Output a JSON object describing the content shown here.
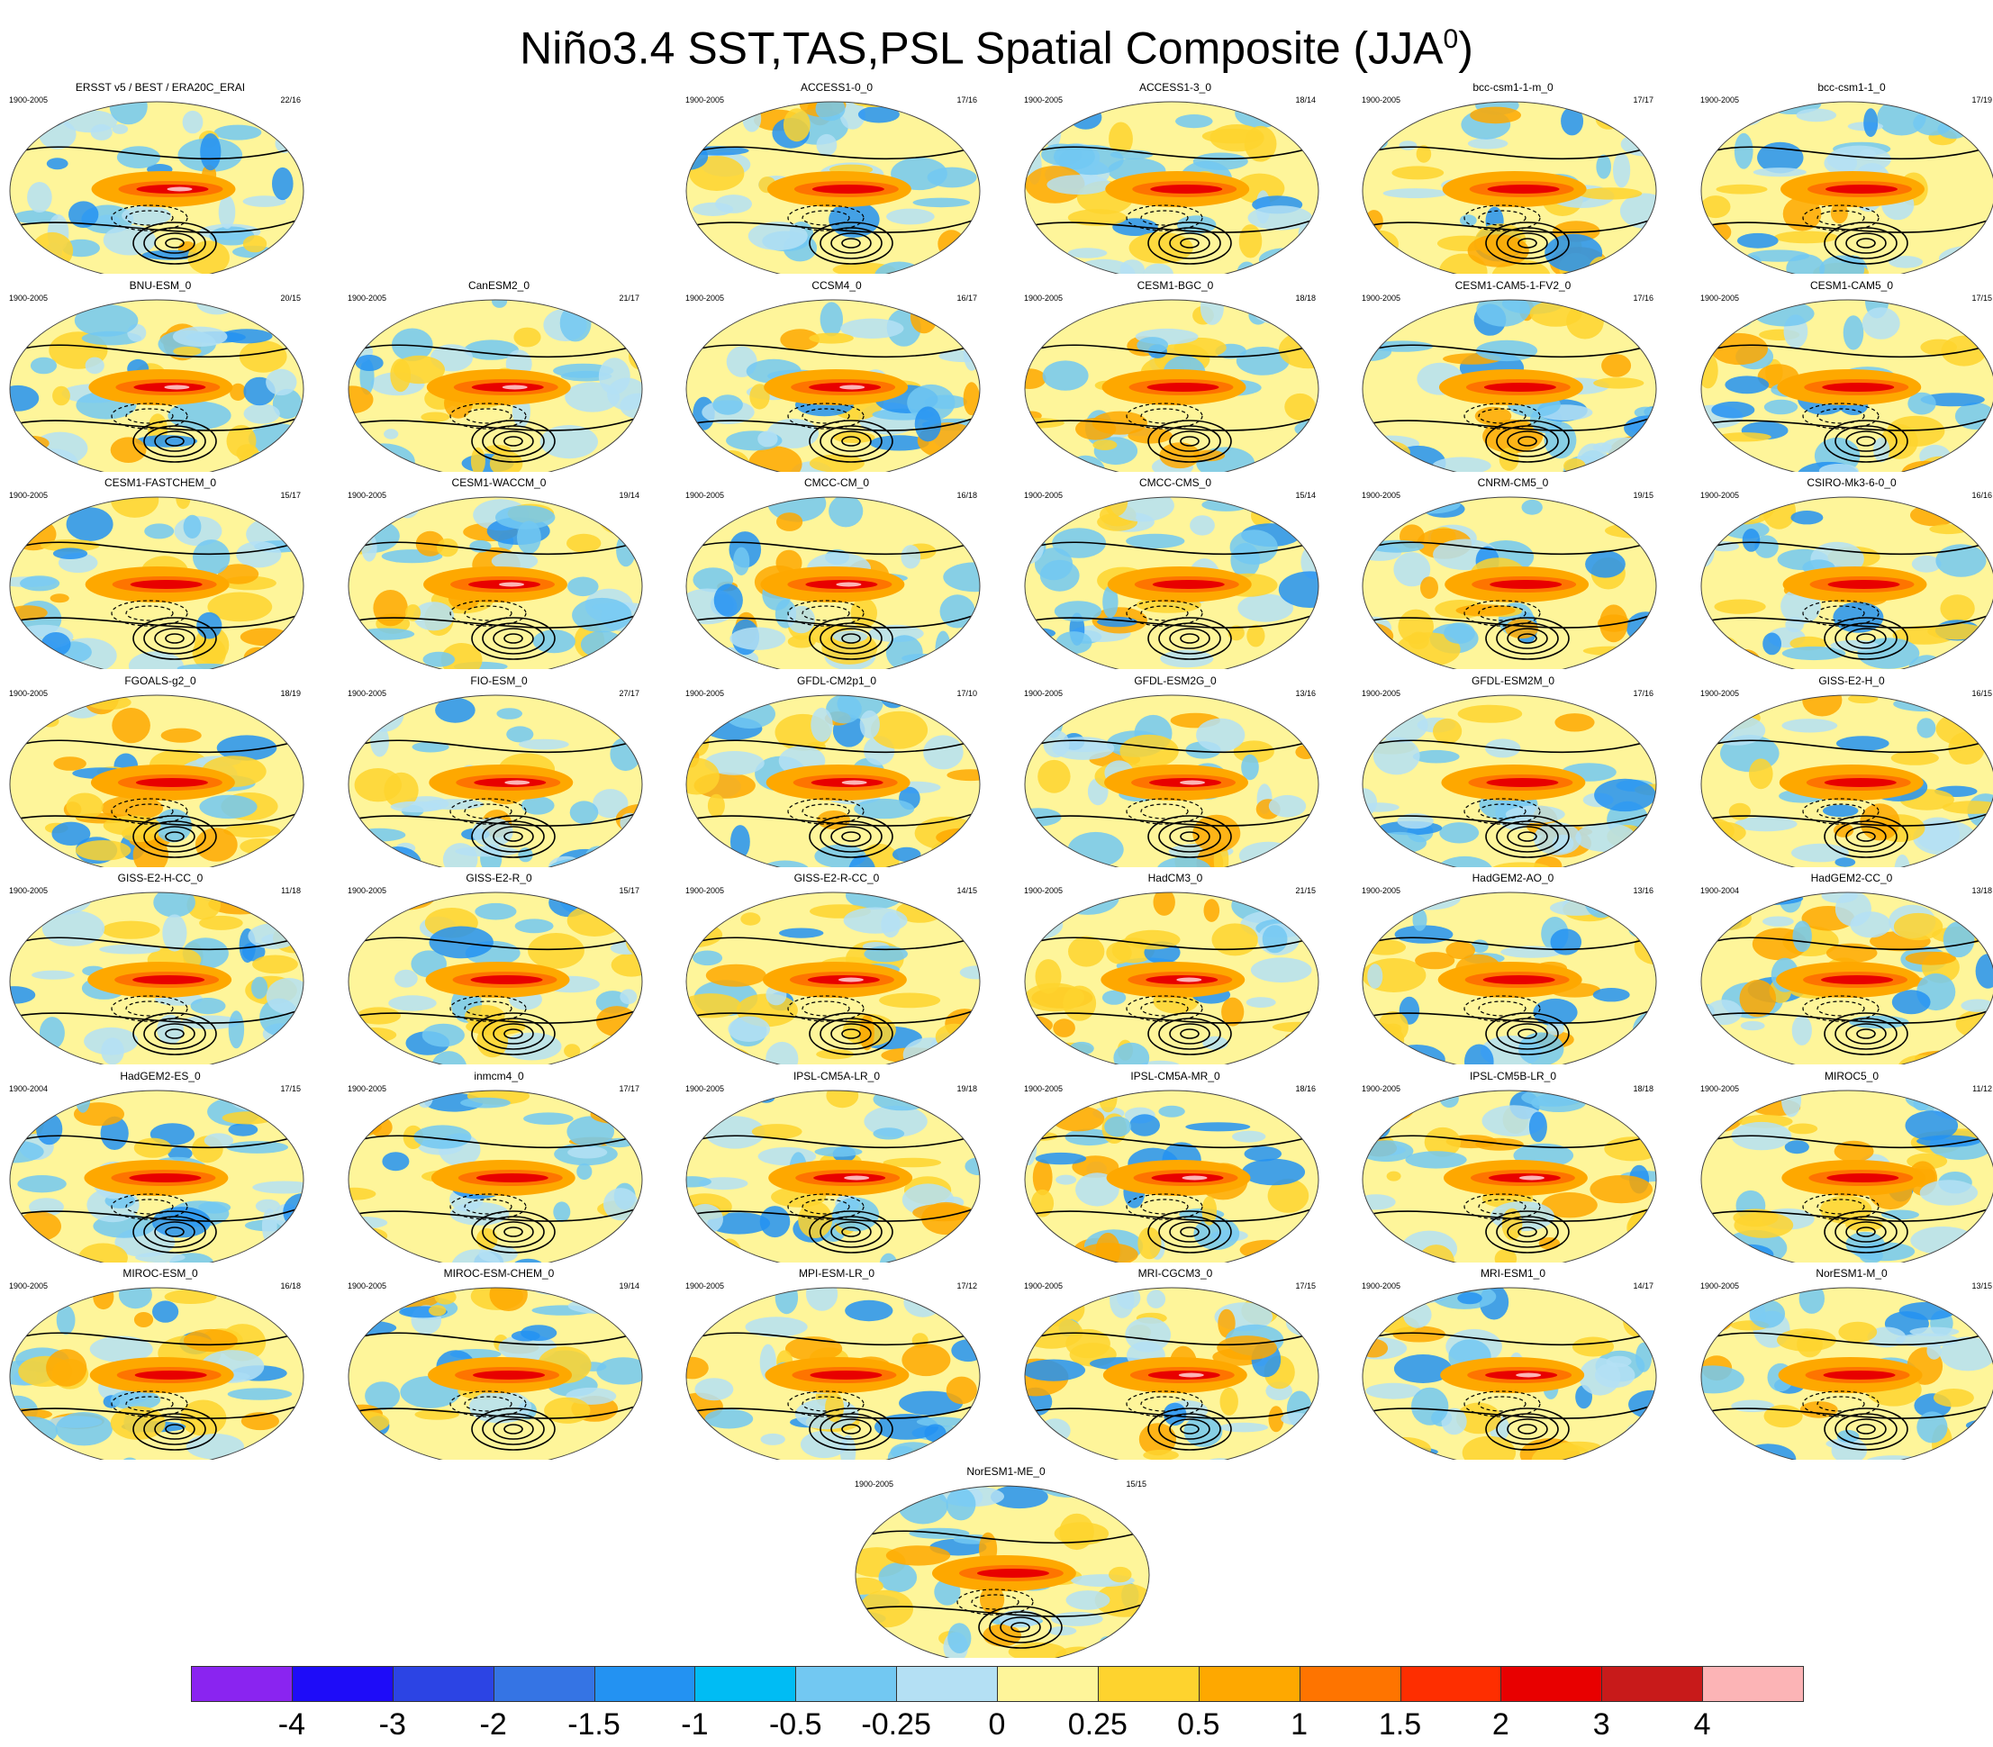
{
  "title_main": "Niño3.4 SST,TAS,PSL Spatial Composite (JJA",
  "title_sup": "0",
  "title_close": ")",
  "panels": [
    {
      "name": "ERSST v5 / BEST / ERA20C_ERAI",
      "years": "1900-2005",
      "count": "22/16",
      "row": 0,
      "col": 0
    },
    {
      "name": "ACCESS1-0_0",
      "years": "1900-2005",
      "count": "17/16",
      "row": 0,
      "col": 2
    },
    {
      "name": "ACCESS1-3_0",
      "years": "1900-2005",
      "count": "18/14",
      "row": 0,
      "col": 3
    },
    {
      "name": "bcc-csm1-1-m_0",
      "years": "1900-2005",
      "count": "17/17",
      "row": 0,
      "col": 4
    },
    {
      "name": "bcc-csm1-1_0",
      "years": "1900-2005",
      "count": "17/19",
      "row": 0,
      "col": 5
    },
    {
      "name": "BNU-ESM_0",
      "years": "1900-2005",
      "count": "20/15",
      "row": 1,
      "col": 0
    },
    {
      "name": "CanESM2_0",
      "years": "1900-2005",
      "count": "21/17",
      "row": 1,
      "col": 1
    },
    {
      "name": "CCSM4_0",
      "years": "1900-2005",
      "count": "16/17",
      "row": 1,
      "col": 2
    },
    {
      "name": "CESM1-BGC_0",
      "years": "1900-2005",
      "count": "18/18",
      "row": 1,
      "col": 3
    },
    {
      "name": "CESM1-CAM5-1-FV2_0",
      "years": "1900-2005",
      "count": "17/16",
      "row": 1,
      "col": 4
    },
    {
      "name": "CESM1-CAM5_0",
      "years": "1900-2005",
      "count": "17/15",
      "row": 1,
      "col": 5
    },
    {
      "name": "CESM1-FASTCHEM_0",
      "years": "1900-2005",
      "count": "15/17",
      "row": 2,
      "col": 0
    },
    {
      "name": "CESM1-WACCM_0",
      "years": "1900-2005",
      "count": "19/14",
      "row": 2,
      "col": 1
    },
    {
      "name": "CMCC-CM_0",
      "years": "1900-2005",
      "count": "16/18",
      "row": 2,
      "col": 2
    },
    {
      "name": "CMCC-CMS_0",
      "years": "1900-2005",
      "count": "15/14",
      "row": 2,
      "col": 3
    },
    {
      "name": "CNRM-CM5_0",
      "years": "1900-2005",
      "count": "19/15",
      "row": 2,
      "col": 4
    },
    {
      "name": "CSIRO-Mk3-6-0_0",
      "years": "1900-2005",
      "count": "16/16",
      "row": 2,
      "col": 5
    },
    {
      "name": "FGOALS-g2_0",
      "years": "1900-2005",
      "count": "18/19",
      "row": 3,
      "col": 0
    },
    {
      "name": "FIO-ESM_0",
      "years": "1900-2005",
      "count": "27/17",
      "row": 3,
      "col": 1
    },
    {
      "name": "GFDL-CM2p1_0",
      "years": "1900-2005",
      "count": "17/10",
      "row": 3,
      "col": 2
    },
    {
      "name": "GFDL-ESM2G_0",
      "years": "1900-2005",
      "count": "13/16",
      "row": 3,
      "col": 3
    },
    {
      "name": "GFDL-ESM2M_0",
      "years": "1900-2005",
      "count": "17/16",
      "row": 3,
      "col": 4
    },
    {
      "name": "GISS-E2-H_0",
      "years": "1900-2005",
      "count": "16/15",
      "row": 3,
      "col": 5
    },
    {
      "name": "GISS-E2-H-CC_0",
      "years": "1900-2005",
      "count": "11/18",
      "row": 4,
      "col": 0
    },
    {
      "name": "GISS-E2-R_0",
      "years": "1900-2005",
      "count": "15/17",
      "row": 4,
      "col": 1
    },
    {
      "name": "GISS-E2-R-CC_0",
      "years": "1900-2005",
      "count": "14/15",
      "row": 4,
      "col": 2
    },
    {
      "name": "HadCM3_0",
      "years": "1900-2005",
      "count": "21/15",
      "row": 4,
      "col": 3
    },
    {
      "name": "HadGEM2-AO_0",
      "years": "1900-2005",
      "count": "13/16",
      "row": 4,
      "col": 4
    },
    {
      "name": "HadGEM2-CC_0",
      "years": "1900-2004",
      "count": "13/18",
      "row": 4,
      "col": 5
    },
    {
      "name": "HadGEM2-ES_0",
      "years": "1900-2004",
      "count": "17/15",
      "row": 5,
      "col": 0
    },
    {
      "name": "inmcm4_0",
      "years": "1900-2005",
      "count": "17/17",
      "row": 5,
      "col": 1
    },
    {
      "name": "IPSL-CM5A-LR_0",
      "years": "1900-2005",
      "count": "19/18",
      "row": 5,
      "col": 2
    },
    {
      "name": "IPSL-CM5A-MR_0",
      "years": "1900-2005",
      "count": "18/16",
      "row": 5,
      "col": 3
    },
    {
      "name": "IPSL-CM5B-LR_0",
      "years": "1900-2005",
      "count": "18/18",
      "row": 5,
      "col": 4
    },
    {
      "name": "MIROC5_0",
      "years": "1900-2005",
      "count": "11/12",
      "row": 5,
      "col": 5
    },
    {
      "name": "MIROC-ESM_0",
      "years": "1900-2005",
      "count": "16/18",
      "row": 6,
      "col": 0
    },
    {
      "name": "MIROC-ESM-CHEM_0",
      "years": "1900-2005",
      "count": "19/14",
      "row": 6,
      "col": 1
    },
    {
      "name": "MPI-ESM-LR_0",
      "years": "1900-2005",
      "count": "17/12",
      "row": 6,
      "col": 2
    },
    {
      "name": "MRI-CGCM3_0",
      "years": "1900-2005",
      "count": "17/15",
      "row": 6,
      "col": 3
    },
    {
      "name": "MRI-ESM1_0",
      "years": "1900-2005",
      "count": "14/17",
      "row": 6,
      "col": 4
    },
    {
      "name": "NorESM1-M_0",
      "years": "1900-2005",
      "count": "13/15",
      "row": 6,
      "col": 5
    },
    {
      "name": "NorESM1-ME_0",
      "years": "1900-2005",
      "count": "15/15",
      "row": 7,
      "col": 2.5
    }
  ],
  "colorbar": {
    "colors": [
      "#8a24f0",
      "#1e0cf8",
      "#2c44e4",
      "#3574e4",
      "#2392f2",
      "#00bcf4",
      "#72c8f2",
      "#b4e0f4",
      "#fef59a",
      "#fed32e",
      "#fea800",
      "#fe7400",
      "#fe2e00",
      "#e80000",
      "#c81a1a",
      "#fcb4b6"
    ],
    "labels": [
      "-4",
      "-3",
      "-2",
      "-1.5",
      "-1",
      "-0.5",
      "-0.25",
      "0",
      "0.25",
      "0.5",
      "1",
      "1.5",
      "2",
      "3",
      "4"
    ]
  }
}
